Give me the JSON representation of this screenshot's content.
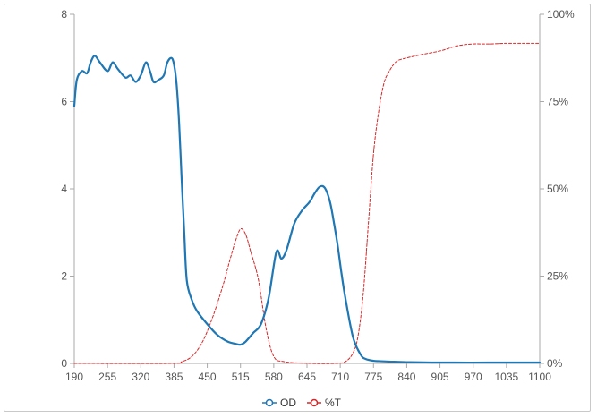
{
  "chart_data": {
    "type": "line",
    "title": "",
    "xlabel": "",
    "ylabel": "",
    "y2label": "",
    "x_ticks": [
      190,
      255,
      320,
      385,
      450,
      515,
      580,
      645,
      710,
      775,
      840,
      905,
      970,
      1035,
      1100
    ],
    "xlim": [
      190,
      1100
    ],
    "ylim_left": [
      0,
      8
    ],
    "y_ticks_left": [
      0,
      2,
      4,
      6,
      8
    ],
    "ylim_right": [
      0,
      100
    ],
    "y_ticks_right": [
      "0%",
      "25%",
      "50%",
      "75%",
      "100%"
    ],
    "grid": false,
    "legend_position": "bottom-center",
    "series": [
      {
        "name": "OD",
        "axis": "left",
        "color": "#1f77b4",
        "style": "solid",
        "x": [
          190,
          195,
          205,
          215,
          222,
          230,
          240,
          255,
          265,
          275,
          290,
          300,
          310,
          320,
          330,
          338,
          345,
          355,
          365,
          372,
          380,
          385,
          390,
          395,
          400,
          405,
          410,
          420,
          430,
          450,
          470,
          490,
          505,
          515,
          525,
          540,
          555,
          570,
          585,
          595,
          605,
          620,
          635,
          650,
          660,
          670,
          680,
          690,
          698,
          705,
          712,
          720,
          735,
          750,
          760,
          775,
          790,
          810,
          840,
          900,
          1000,
          1100
        ],
        "values": [
          5.9,
          6.5,
          6.7,
          6.65,
          6.9,
          7.05,
          6.9,
          6.7,
          6.9,
          6.75,
          6.55,
          6.6,
          6.45,
          6.6,
          6.9,
          6.7,
          6.45,
          6.5,
          6.6,
          6.9,
          7.0,
          6.85,
          6.4,
          5.5,
          4.2,
          3.0,
          1.9,
          1.45,
          1.2,
          0.9,
          0.65,
          0.5,
          0.45,
          0.43,
          0.5,
          0.7,
          0.9,
          1.5,
          2.55,
          2.4,
          2.6,
          3.2,
          3.5,
          3.7,
          3.9,
          4.05,
          4.02,
          3.7,
          3.2,
          2.7,
          2.1,
          1.5,
          0.6,
          0.2,
          0.1,
          0.06,
          0.05,
          0.04,
          0.03,
          0.02,
          0.02,
          0.02
        ]
      },
      {
        "name": "%T",
        "axis": "right",
        "color": "#d62728",
        "style": "dashed",
        "x": [
          190,
          380,
          400,
          420,
          440,
          460,
          480,
          495,
          505,
          515,
          525,
          535,
          550,
          565,
          580,
          600,
          650,
          700,
          720,
          735,
          745,
          755,
          765,
          775,
          785,
          795,
          805,
          820,
          840,
          870,
          905,
          940,
          970,
          1000,
          1035,
          1070,
          1100
        ],
        "values": [
          0,
          0,
          0.5,
          2,
          6,
          13,
          22,
          30,
          35,
          38.5,
          37,
          32,
          24,
          10,
          2,
          0.5,
          0,
          0,
          0.5,
          3,
          8,
          20,
          40,
          60,
          72,
          80,
          83.5,
          86.5,
          87.5,
          88.5,
          89.5,
          91,
          91.5,
          91.5,
          91.7,
          91.7,
          91.7
        ]
      }
    ]
  }
}
